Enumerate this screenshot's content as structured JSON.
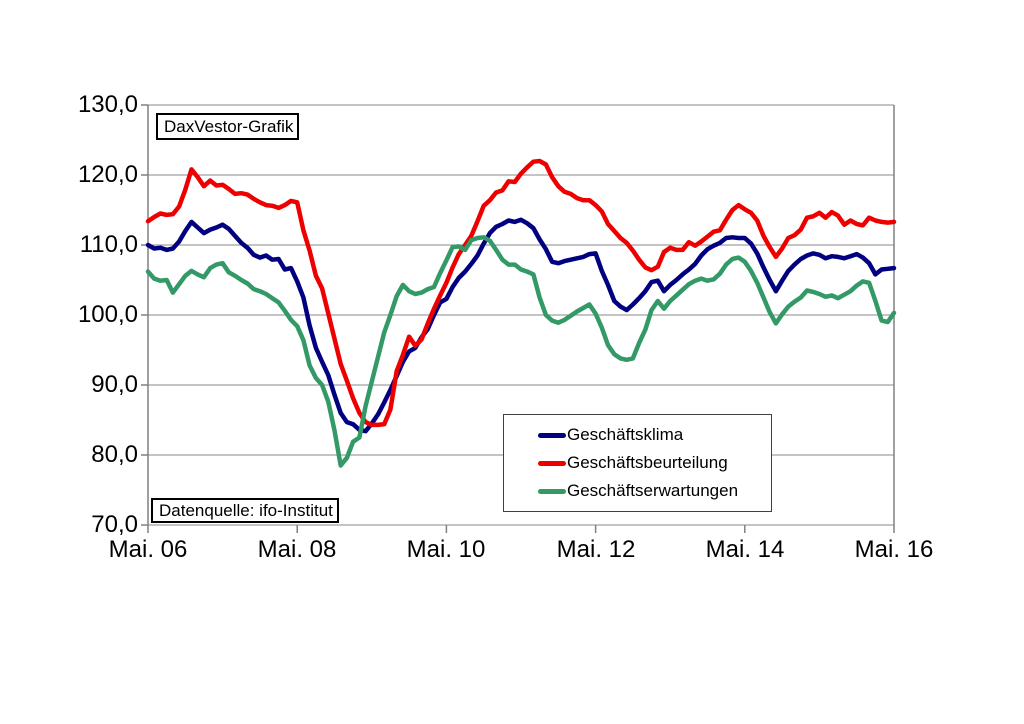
{
  "chart_data": {
    "type": "line",
    "title_box": "DaxVestor-Grafik",
    "source_box": "Datenquelle: ifo-Institut",
    "ylim": [
      70,
      130
    ],
    "y_tick_step": 10,
    "y_tick_labels": [
      "130,0",
      "120,0",
      "110,0",
      "100,0",
      "90,0",
      "80,0",
      "70,0"
    ],
    "x_tick_labels": [
      "Mai. 06",
      "Mai. 08",
      "Mai. 10",
      "Mai. 12",
      "Mai. 14",
      "Mai. 16"
    ],
    "x_range_months": 120,
    "grid": "horizontal-gridlines-on",
    "legend_position": "inside-lower-middle",
    "axis_color": "#808080",
    "grid_color": "#8a8a8a",
    "series": [
      {
        "name": "Geschäftsklima",
        "color": "#000080",
        "values": [
          110.0,
          109.5,
          109.6,
          109.3,
          109.5,
          110.5,
          112.0,
          113.3,
          112.5,
          111.7,
          112.2,
          112.5,
          112.9,
          112.3,
          111.3,
          110.3,
          109.6,
          108.6,
          108.2,
          108.5,
          107.9,
          108.0,
          106.5,
          106.7,
          104.8,
          102.5,
          98.5,
          95.3,
          93.3,
          91.4,
          88.6,
          86.0,
          84.7,
          84.4,
          83.6,
          83.4,
          84.5,
          85.8,
          87.5,
          89.3,
          91.3,
          93.3,
          94.8,
          95.3,
          96.8,
          98.0,
          100.0,
          101.8,
          102.3,
          104.0,
          105.3,
          106.2,
          107.3,
          108.5,
          110.2,
          111.7,
          112.6,
          113.0,
          113.5,
          113.3,
          113.6,
          113.1,
          112.4,
          110.8,
          109.4,
          107.6,
          107.4,
          107.7,
          107.9,
          108.1,
          108.3,
          108.7,
          108.8,
          106.3,
          104.3,
          102.0,
          101.2,
          100.7,
          101.5,
          102.4,
          103.4,
          104.7,
          104.9,
          103.4,
          104.3,
          105.0,
          105.8,
          106.5,
          107.3,
          108.5,
          109.4,
          109.9,
          110.3,
          111.0,
          111.1,
          111.0,
          111.0,
          110.2,
          108.8,
          106.8,
          105.0,
          103.4,
          104.9,
          106.3,
          107.2,
          108.0,
          108.5,
          108.8,
          108.6,
          108.1,
          108.4,
          108.3,
          108.1,
          108.4,
          108.7,
          108.2,
          107.4,
          105.8,
          106.5,
          106.6,
          106.7
        ]
      },
      {
        "name": "Geschäftsbeurteilung",
        "color": "#ee0000",
        "values": [
          113.4,
          114.0,
          114.5,
          114.3,
          114.4,
          115.5,
          117.9,
          120.8,
          119.7,
          118.4,
          119.2,
          118.5,
          118.6,
          118.0,
          117.3,
          117.4,
          117.2,
          116.6,
          116.1,
          115.7,
          115.6,
          115.3,
          115.7,
          116.3,
          116.1,
          112.1,
          109.2,
          105.6,
          103.8,
          100.2,
          96.6,
          93.0,
          90.6,
          88.1,
          86.0,
          84.7,
          84.3,
          84.3,
          84.4,
          86.5,
          92.0,
          94.3,
          96.9,
          95.6,
          96.5,
          98.8,
          100.9,
          102.8,
          104.6,
          106.8,
          108.7,
          110.0,
          111.3,
          113.4,
          115.6,
          116.4,
          117.5,
          117.8,
          119.1,
          119.0,
          120.2,
          121.1,
          121.9,
          122.0,
          121.5,
          119.7,
          118.4,
          117.6,
          117.3,
          116.7,
          116.4,
          116.4,
          115.7,
          114.8,
          113.0,
          112.0,
          111.0,
          110.3,
          109.2,
          107.9,
          106.8,
          106.4,
          106.9,
          109.0,
          109.6,
          109.3,
          109.3,
          110.4,
          109.9,
          110.5,
          111.2,
          111.9,
          112.1,
          113.6,
          115.0,
          115.7,
          115.1,
          114.6,
          113.5,
          111.3,
          109.7,
          108.3,
          109.5,
          111.0,
          111.4,
          112.2,
          113.9,
          114.1,
          114.6,
          113.9,
          114.7,
          114.2,
          112.9,
          113.5,
          113.0,
          112.8,
          113.9,
          113.5,
          113.3,
          113.2,
          113.3
        ]
      },
      {
        "name": "Geschäftserwartungen",
        "color": "#339966",
        "values": [
          106.2,
          105.2,
          104.9,
          105.0,
          103.2,
          104.4,
          105.6,
          106.3,
          105.8,
          105.4,
          106.7,
          107.2,
          107.4,
          106.1,
          105.6,
          105.0,
          104.5,
          103.7,
          103.4,
          103.0,
          102.4,
          101.8,
          100.6,
          99.3,
          98.4,
          96.4,
          92.8,
          91.0,
          90.0,
          87.6,
          83.5,
          78.5,
          79.6,
          81.9,
          82.5,
          87.0,
          90.5,
          94.0,
          97.5,
          100.0,
          102.7,
          104.3,
          103.4,
          103.0,
          103.2,
          103.7,
          104.0,
          106.0,
          107.8,
          109.7,
          109.8,
          109.3,
          110.7,
          111.0,
          111.1,
          110.6,
          109.3,
          107.9,
          107.2,
          107.2,
          106.5,
          106.2,
          105.8,
          102.5,
          100.0,
          99.2,
          98.9,
          99.3,
          99.9,
          100.5,
          101.0,
          101.5,
          100.2,
          98.2,
          95.7,
          94.4,
          93.8,
          93.6,
          93.8,
          96.0,
          97.9,
          100.7,
          102.0,
          100.9,
          102.0,
          102.8,
          103.6,
          104.4,
          104.9,
          105.2,
          104.9,
          105.1,
          105.9,
          107.2,
          108.0,
          108.2,
          107.6,
          106.3,
          104.6,
          102.5,
          100.4,
          98.8,
          100.1,
          101.2,
          101.9,
          102.5,
          103.5,
          103.3,
          103.0,
          102.6,
          102.8,
          102.4,
          102.9,
          103.4,
          104.2,
          104.8,
          104.6,
          102.0,
          99.2,
          99.0,
          100.3
        ]
      }
    ]
  }
}
